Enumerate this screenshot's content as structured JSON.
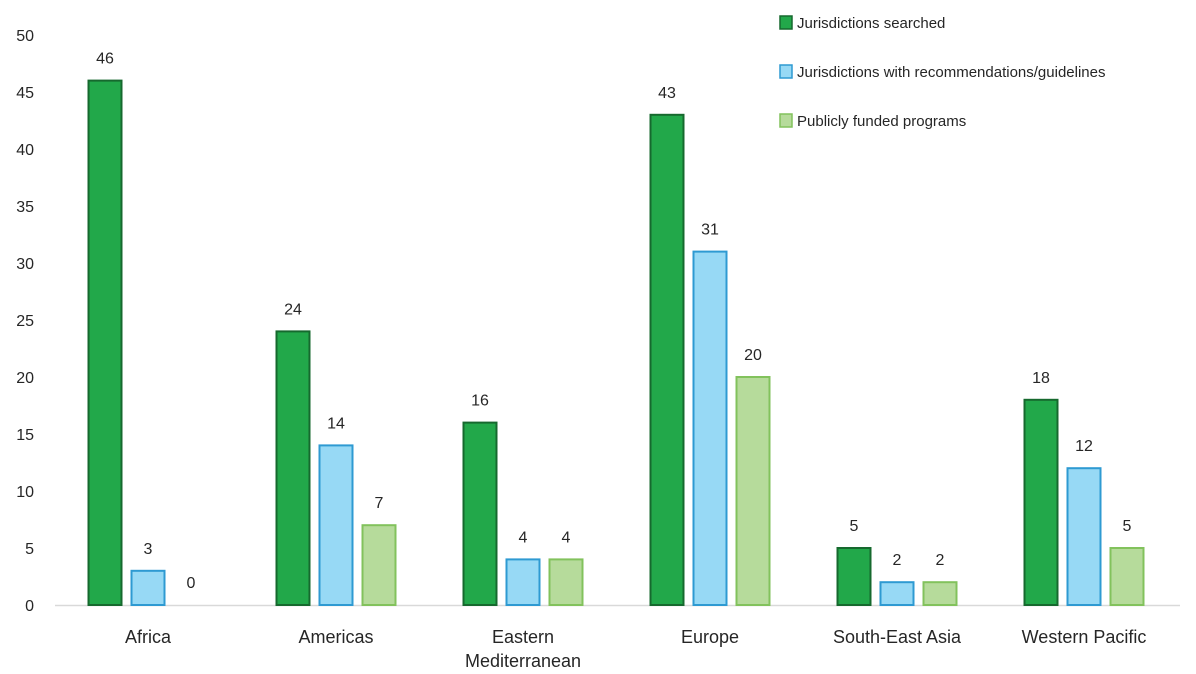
{
  "chart_data": {
    "type": "bar",
    "categories": [
      "Africa",
      "Americas",
      "Eastern Mediterranean",
      "Europe",
      "South-East Asia",
      "Western Pacific"
    ],
    "series": [
      {
        "name": "Jurisdictions searched",
        "values": [
          46,
          24,
          16,
          43,
          5,
          18
        ],
        "color": "#22a84a",
        "stroke": "#16692e"
      },
      {
        "name": "Jurisdictions with recommendations/guidelines",
        "values": [
          3,
          14,
          4,
          31,
          2,
          12
        ],
        "color": "#97d9f5",
        "stroke": "#2e9ad2"
      },
      {
        "name": "Publicly funded programs",
        "values": [
          0,
          7,
          4,
          20,
          2,
          5
        ],
        "color": "#b6db9b",
        "stroke": "#82c25c"
      }
    ],
    "ylim": [
      0,
      50
    ],
    "yticks": [
      0,
      5,
      10,
      15,
      20,
      25,
      30,
      35,
      40,
      45,
      50
    ],
    "grid": false,
    "legend_position": "top-right",
    "title": "",
    "xlabel": "",
    "ylabel": ""
  }
}
